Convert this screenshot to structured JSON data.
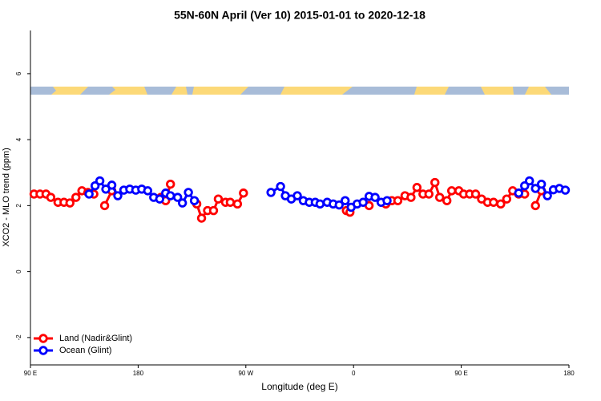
{
  "chart_data": {
    "type": "line",
    "title": "55N-60N April (Ver 10)   2015-01-01 to 2020-12-18",
    "x_label": "Longitude (deg E)",
    "y_label": "XCO2 - MLO trend (ppm)",
    "xlim": [
      90,
      540
    ],
    "xticks": [
      {
        "value": 90,
        "label": "90 E"
      },
      180,
      {
        "value": 270,
        "label": "90 W"
      },
      {
        "value": 360,
        "label": "0"
      },
      {
        "value": 450,
        "label": "90 E"
      },
      {
        "value": 540,
        "label": "180"
      }
    ],
    "ylim": [
      -2.83,
      7.31
    ],
    "yticks": [
      -2,
      0,
      2,
      4,
      6
    ],
    "legend": "bottom-left",
    "series": [
      {
        "name": "Land (Nadir&Glint)",
        "color": "#ff0000",
        "x": [
          93,
          98,
          103,
          107,
          113,
          118,
          123,
          128,
          133,
          138,
          143,
          145,
          152,
          158,
          180,
          199,
          203,
          207,
          220,
          229,
          233,
          238,
          243,
          247,
          253,
          257,
          263,
          268,
          330,
          354,
          357,
          365,
          373,
          380,
          387,
          392,
          397,
          403,
          408,
          413,
          418,
          423,
          428,
          432,
          438,
          442,
          448,
          452,
          457,
          462,
          467,
          472,
          477,
          483,
          488,
          493,
          498,
          503,
          507,
          512,
          517
        ],
        "values": [
          2.35,
          2.35,
          2.35,
          2.25,
          2.1,
          2.1,
          2.08,
          2.25,
          2.45,
          2.4,
          2.35,
          null,
          2.0,
          2.45,
          null,
          2.25,
          2.15,
          2.65,
          null,
          2.05,
          1.62,
          1.85,
          1.85,
          2.2,
          2.1,
          2.1,
          2.05,
          2.38,
          null,
          1.85,
          1.8,
          null,
          2.0,
          null,
          2.05,
          2.15,
          2.15,
          2.3,
          2.25,
          2.55,
          2.35,
          2.35,
          2.7,
          2.25,
          2.15,
          2.45,
          2.45,
          2.35,
          2.35,
          2.35,
          2.2,
          2.1,
          2.1,
          2.05,
          2.2,
          2.45,
          2.35,
          2.35,
          null,
          2.0,
          2.45
        ]
      },
      {
        "name": "Ocean (Glint)",
        "color": "#0000ff",
        "x": [
          139,
          144,
          148,
          153,
          158,
          163,
          168,
          173,
          178,
          183,
          188,
          193,
          198,
          203,
          207,
          213,
          217,
          222,
          227,
          260,
          291,
          299,
          303,
          308,
          313,
          318,
          323,
          328,
          332,
          338,
          343,
          348,
          353,
          358,
          363,
          368,
          373,
          378,
          383,
          388,
          440,
          498,
          503,
          507,
          512,
          517,
          522,
          527,
          532,
          537
        ],
        "values": [
          2.35,
          2.6,
          2.75,
          2.5,
          2.62,
          2.3,
          2.47,
          2.5,
          2.47,
          2.5,
          2.45,
          2.25,
          2.2,
          2.38,
          2.3,
          2.25,
          2.08,
          2.4,
          2.15,
          null,
          2.4,
          2.58,
          2.3,
          2.2,
          2.3,
          2.15,
          2.1,
          2.1,
          2.05,
          2.1,
          2.05,
          2.02,
          2.15,
          1.95,
          2.05,
          2.1,
          2.28,
          2.25,
          2.1,
          2.15,
          null,
          2.38,
          2.6,
          2.75,
          2.52,
          2.65,
          2.3,
          2.48,
          2.52,
          2.47
        ]
      }
    ]
  }
}
